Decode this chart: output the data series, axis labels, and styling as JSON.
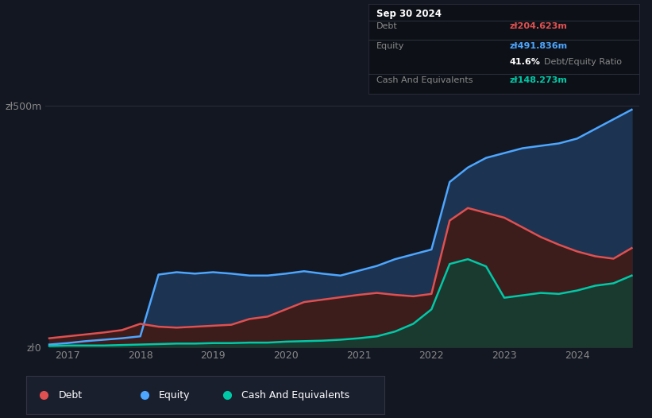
{
  "bg_color": "#131722",
  "plot_bg": "#131722",
  "grid_color": "#2a2e39",
  "title_box": {
    "date": "Sep 30 2024",
    "debt_label": "Debt",
    "debt_value": "zł204.623m",
    "equity_label": "Equity",
    "equity_value": "zł491.836m",
    "ratio": "41.6%",
    "ratio_text": "Debt/Equity Ratio",
    "cash_label": "Cash And Equivalents",
    "cash_value": "zł148.273m"
  },
  "ylabel_top": "zł500m",
  "ylabel_bottom": "zŀ0",
  "debt_color": "#e05050",
  "equity_color": "#4da6ff",
  "cash_color": "#00c9a7",
  "years": [
    2016.75,
    2017.0,
    2017.25,
    2017.5,
    2017.75,
    2018.0,
    2018.25,
    2018.5,
    2018.75,
    2019.0,
    2019.25,
    2019.5,
    2019.75,
    2020.0,
    2020.25,
    2020.5,
    2020.75,
    2021.0,
    2021.25,
    2021.5,
    2021.75,
    2022.0,
    2022.25,
    2022.5,
    2022.75,
    2023.0,
    2023.25,
    2023.5,
    2023.75,
    2024.0,
    2024.25,
    2024.5,
    2024.75
  ],
  "debt": [
    18,
    22,
    26,
    30,
    35,
    48,
    42,
    40,
    42,
    44,
    46,
    58,
    63,
    78,
    93,
    98,
    103,
    108,
    112,
    108,
    105,
    110,
    262,
    288,
    278,
    268,
    248,
    228,
    212,
    198,
    188,
    183,
    205
  ],
  "equity": [
    5,
    8,
    12,
    15,
    18,
    22,
    150,
    155,
    152,
    155,
    152,
    148,
    148,
    152,
    157,
    152,
    148,
    158,
    168,
    182,
    192,
    202,
    342,
    372,
    392,
    402,
    412,
    417,
    422,
    432,
    452,
    472,
    492
  ],
  "cash": [
    2,
    3,
    3,
    3,
    4,
    5,
    6,
    7,
    7,
    8,
    8,
    9,
    9,
    11,
    12,
    13,
    15,
    18,
    22,
    32,
    48,
    78,
    172,
    182,
    167,
    102,
    107,
    112,
    110,
    117,
    127,
    132,
    148
  ],
  "xticks": [
    2017,
    2018,
    2019,
    2020,
    2021,
    2022,
    2023,
    2024
  ],
  "ylim": [
    0,
    520
  ],
  "legend": [
    {
      "label": "Debt",
      "color": "#e05050"
    },
    {
      "label": "Equity",
      "color": "#4da6ff"
    },
    {
      "label": "Cash And Equivalents",
      "color": "#00c9a7"
    }
  ]
}
